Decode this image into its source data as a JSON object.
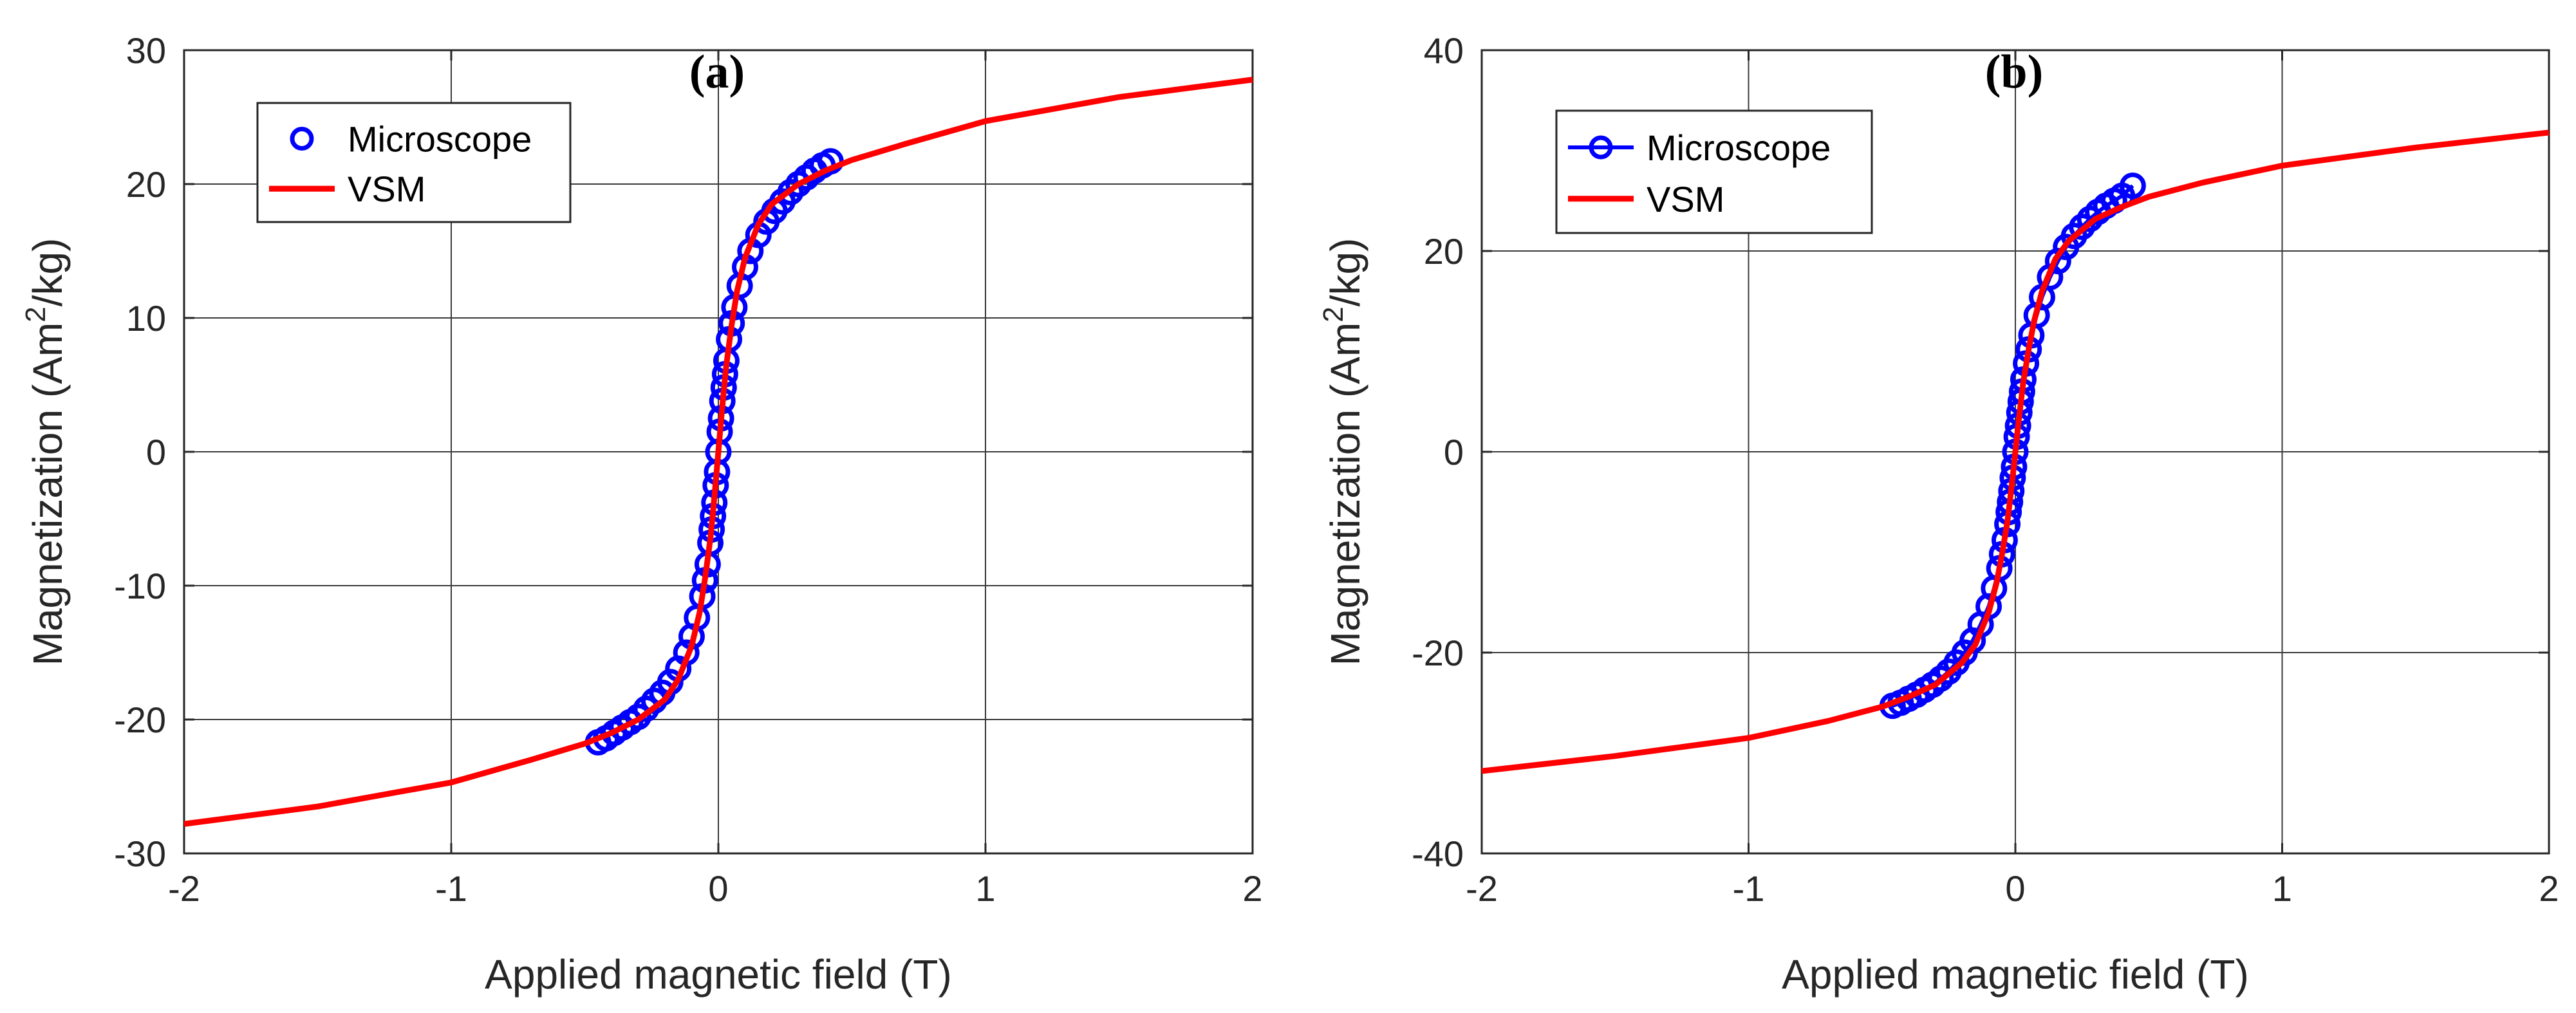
{
  "chart_data": [
    {
      "type": "line",
      "panel_label": "(a)",
      "xlabel": "Applied magnetic field (T)",
      "ylabel_main": "Magnetization (Am",
      "ylabel_sup": "2",
      "ylabel_end": "/kg)",
      "xlim": [
        -2,
        2
      ],
      "ylim": [
        -30,
        30
      ],
      "xticks": [
        -2,
        -1,
        0,
        1,
        2
      ],
      "yticks": [
        -30,
        -20,
        -10,
        0,
        10,
        20,
        30
      ],
      "xtick_labels": [
        "-2",
        "-1",
        "0",
        "1",
        "2"
      ],
      "ytick_labels": [
        "-30",
        "-20",
        "-10",
        "0",
        "10",
        "20",
        "30"
      ],
      "grid": true,
      "legend": {
        "position": "top-left",
        "entries": [
          "Microscope",
          "VSM"
        ],
        "marker_line": false
      },
      "series": [
        {
          "name": "VSM",
          "style": "line",
          "color": "#ff0000",
          "x": [
            -2.0,
            -1.5,
            -1.0,
            -0.7,
            -0.5,
            -0.4,
            -0.3,
            -0.2,
            -0.15,
            -0.1,
            -0.07,
            -0.05,
            -0.03,
            -0.02,
            -0.01,
            0.0,
            0.01,
            0.02,
            0.03,
            0.05,
            0.07,
            0.1,
            0.15,
            0.2,
            0.3,
            0.4,
            0.5,
            0.7,
            1.0,
            1.5,
            2.0
          ],
          "y": [
            -27.8,
            -26.5,
            -24.7,
            -23.0,
            -21.8,
            -21.0,
            -20.0,
            -18.5,
            -17.0,
            -14.5,
            -12.0,
            -9.5,
            -6.5,
            -4.5,
            -2.3,
            0.0,
            2.3,
            4.5,
            6.5,
            9.5,
            12.0,
            14.5,
            17.0,
            18.5,
            20.0,
            21.0,
            21.8,
            23.0,
            24.7,
            26.5,
            27.8
          ]
        },
        {
          "name": "Microscope",
          "style": "markers",
          "color": "#0000ff",
          "x": [
            -0.45,
            -0.42,
            -0.39,
            -0.36,
            -0.33,
            -0.3,
            -0.27,
            -0.24,
            -0.21,
            -0.18,
            -0.15,
            -0.12,
            -0.1,
            -0.08,
            -0.06,
            -0.05,
            -0.04,
            -0.03,
            -0.025,
            -0.02,
            -0.015,
            -0.01,
            -0.005,
            0.0,
            0.005,
            0.01,
            0.015,
            0.02,
            0.025,
            0.03,
            0.04,
            0.05,
            0.06,
            0.08,
            0.1,
            0.12,
            0.15,
            0.18,
            0.21,
            0.24,
            0.27,
            0.3,
            0.33,
            0.36,
            0.39,
            0.42
          ],
          "y": [
            -21.7,
            -21.4,
            -21.0,
            -20.6,
            -20.2,
            -19.8,
            -19.2,
            -18.6,
            -18.0,
            -17.2,
            -16.2,
            -15.0,
            -13.8,
            -12.4,
            -10.8,
            -9.6,
            -8.4,
            -6.8,
            -5.8,
            -4.8,
            -3.8,
            -2.5,
            -1.5,
            0.0,
            1.5,
            2.5,
            3.8,
            4.8,
            5.8,
            6.8,
            8.4,
            9.6,
            10.8,
            12.4,
            13.8,
            15.0,
            16.2,
            17.2,
            18.0,
            18.7,
            19.4,
            20.0,
            20.5,
            21.0,
            21.4,
            21.7
          ]
        }
      ]
    },
    {
      "type": "line",
      "panel_label": "(b)",
      "xlabel": "Applied magnetic field (T)",
      "ylabel_main": "Magnetization (Am",
      "ylabel_sup": "2",
      "ylabel_end": "/kg)",
      "xlim": [
        -2,
        2
      ],
      "ylim": [
        -40,
        40
      ],
      "xticks": [
        -2,
        -1,
        0,
        1,
        2
      ],
      "yticks": [
        -40,
        -20,
        0,
        20,
        40
      ],
      "xtick_labels": [
        "-2",
        "-1",
        "0",
        "1",
        "2"
      ],
      "ytick_labels": [
        "-40",
        "-20",
        "0",
        "20",
        "40"
      ],
      "grid": true,
      "legend": {
        "position": "top-left",
        "entries": [
          "Microscope",
          "VSM"
        ],
        "marker_line": true
      },
      "series": [
        {
          "name": "VSM",
          "style": "line",
          "color": "#ff0000",
          "x": [
            -2.0,
            -1.5,
            -1.0,
            -0.7,
            -0.5,
            -0.4,
            -0.3,
            -0.2,
            -0.15,
            -0.1,
            -0.07,
            -0.05,
            -0.03,
            -0.02,
            -0.01,
            0.0,
            0.01,
            0.02,
            0.03,
            0.05,
            0.07,
            0.1,
            0.15,
            0.2,
            0.3,
            0.4,
            0.5,
            0.7,
            1.0,
            1.5,
            2.0
          ],
          "y": [
            -31.8,
            -30.3,
            -28.5,
            -26.8,
            -25.4,
            -24.4,
            -23.2,
            -21.0,
            -19.2,
            -16.0,
            -13.0,
            -10.2,
            -7.0,
            -4.8,
            -2.5,
            0.0,
            2.5,
            4.8,
            7.0,
            10.2,
            13.0,
            16.0,
            19.2,
            21.0,
            23.2,
            24.4,
            25.4,
            26.8,
            28.5,
            30.3,
            31.8
          ]
        },
        {
          "name": "Microscope",
          "style": "markers",
          "color": "#0000ff",
          "x": [
            -0.46,
            -0.43,
            -0.4,
            -0.37,
            -0.34,
            -0.31,
            -0.28,
            -0.25,
            -0.22,
            -0.19,
            -0.16,
            -0.13,
            -0.1,
            -0.08,
            -0.06,
            -0.05,
            -0.04,
            -0.03,
            -0.025,
            -0.02,
            -0.015,
            -0.01,
            -0.005,
            0.0,
            0.005,
            0.01,
            0.015,
            0.02,
            0.025,
            0.03,
            0.04,
            0.05,
            0.06,
            0.08,
            0.1,
            0.13,
            0.16,
            0.19,
            0.22,
            0.25,
            0.28,
            0.31,
            0.34,
            0.37,
            0.4,
            0.44
          ],
          "y": [
            -25.3,
            -25.0,
            -24.6,
            -24.2,
            -23.7,
            -23.2,
            -22.6,
            -21.9,
            -21.0,
            -20.0,
            -18.8,
            -17.2,
            -15.4,
            -13.6,
            -11.6,
            -10.2,
            -8.8,
            -7.2,
            -6.0,
            -5.0,
            -3.9,
            -2.6,
            -1.5,
            0.0,
            1.5,
            2.6,
            3.9,
            5.0,
            6.0,
            7.2,
            8.8,
            10.2,
            11.6,
            13.6,
            15.4,
            17.4,
            19.0,
            20.4,
            21.5,
            22.4,
            23.2,
            23.9,
            24.5,
            25.0,
            25.5,
            26.5
          ]
        }
      ]
    }
  ]
}
